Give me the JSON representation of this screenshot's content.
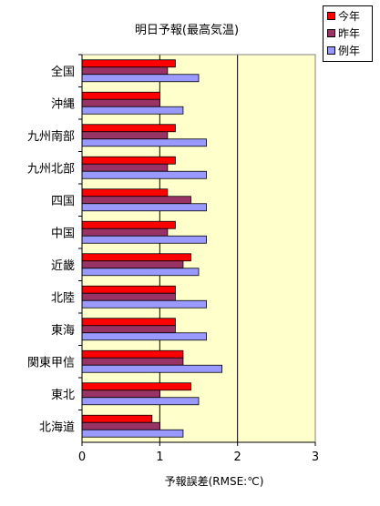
{
  "chart_data": {
    "type": "bar",
    "orientation": "horizontal",
    "title": "明日予報(最高気温)",
    "xlabel": "予報誤差(RMSE:℃)",
    "ylabel": "",
    "xlim": [
      0,
      3
    ],
    "x_ticks": [
      "0",
      "1",
      "2",
      "3"
    ],
    "grid": true,
    "legend_position": "top-right",
    "categories": [
      "全国",
      "沖縄",
      "九州南部",
      "九州北部",
      "四国",
      "中国",
      "近畿",
      "北陸",
      "東海",
      "関東甲信",
      "東北",
      "北海道"
    ],
    "series": [
      {
        "name": "今年",
        "color": "#ff0000",
        "values": [
          1.2,
          1.0,
          1.2,
          1.2,
          1.1,
          1.2,
          1.4,
          1.2,
          1.2,
          1.3,
          1.4,
          0.9
        ]
      },
      {
        "name": "昨年",
        "color": "#993366",
        "values": [
          1.1,
          1.0,
          1.1,
          1.1,
          1.4,
          1.1,
          1.3,
          1.2,
          1.2,
          1.3,
          1.0,
          1.0
        ]
      },
      {
        "name": "例年",
        "color": "#9999ff",
        "values": [
          1.5,
          1.3,
          1.6,
          1.6,
          1.6,
          1.6,
          1.5,
          1.6,
          1.6,
          1.8,
          1.5,
          1.3
        ]
      }
    ],
    "plot_background": "#ffffcc"
  }
}
